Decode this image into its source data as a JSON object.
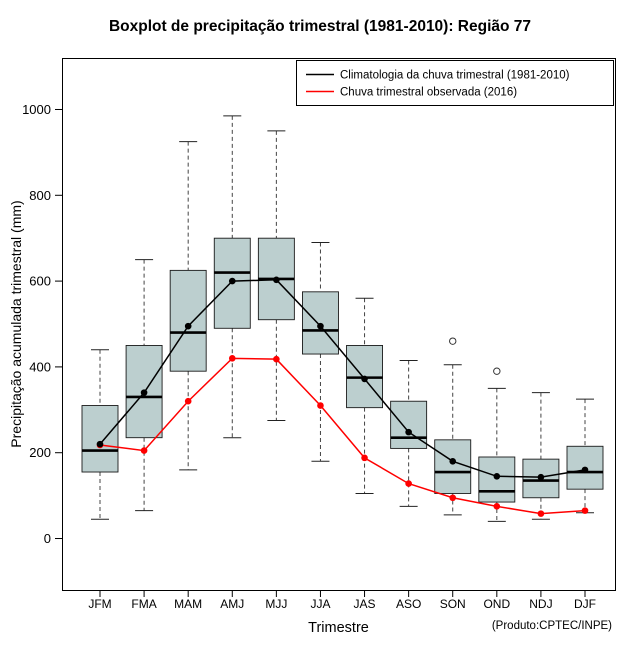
{
  "title": "Boxplot de precipitação trimestral (1981-2010): Região 77",
  "footer": {
    "note": "(Produto:CPTEC/INPE)"
  },
  "chart_data": {
    "type": "boxplot",
    "title": "Boxplot de precipitação trimestral (1981-2010): Região 77",
    "xlabel": "Trimestre",
    "ylabel": "Precipitação acumulada trimestral (mm)",
    "categories": [
      "JFM",
      "FMA",
      "MAM",
      "AMJ",
      "MJJ",
      "JJA",
      "JAS",
      "ASO",
      "SON",
      "OND",
      "NDJ",
      "DJF"
    ],
    "y_ticks": [
      0,
      200,
      400,
      600,
      800,
      1000
    ],
    "ylim": [
      -120,
      1120
    ],
    "grid": false,
    "legend_position": "top-right",
    "box_fill": "#bccfcf",
    "box_stroke": "#1a1a1a",
    "whisker_color": "#444444",
    "boxes": [
      {
        "category": "JFM",
        "low": 45,
        "q1": 155,
        "median": 205,
        "q3": 310,
        "high": 440,
        "outliers": []
      },
      {
        "category": "FMA",
        "low": 65,
        "q1": 235,
        "median": 330,
        "q3": 450,
        "high": 650,
        "outliers": []
      },
      {
        "category": "MAM",
        "low": 160,
        "q1": 390,
        "median": 480,
        "q3": 625,
        "high": 925,
        "outliers": []
      },
      {
        "category": "AMJ",
        "low": 235,
        "q1": 490,
        "median": 620,
        "q3": 700,
        "high": 985,
        "outliers": []
      },
      {
        "category": "MJJ",
        "low": 275,
        "q1": 510,
        "median": 605,
        "q3": 700,
        "high": 950,
        "outliers": []
      },
      {
        "category": "JJA",
        "low": 180,
        "q1": 430,
        "median": 485,
        "q3": 575,
        "high": 690,
        "outliers": []
      },
      {
        "category": "JAS",
        "low": 105,
        "q1": 305,
        "median": 375,
        "q3": 450,
        "high": 560,
        "outliers": []
      },
      {
        "category": "ASO",
        "low": 75,
        "q1": 210,
        "median": 235,
        "q3": 320,
        "high": 415,
        "outliers": []
      },
      {
        "category": "SON",
        "low": 55,
        "q1": 105,
        "median": 155,
        "q3": 230,
        "high": 405,
        "outliers": [
          460
        ]
      },
      {
        "category": "OND",
        "low": 40,
        "q1": 85,
        "median": 110,
        "q3": 190,
        "high": 350,
        "outliers": [
          390
        ]
      },
      {
        "category": "NDJ",
        "low": 45,
        "q1": 95,
        "median": 135,
        "q3": 185,
        "high": 340,
        "outliers": []
      },
      {
        "category": "DJF",
        "low": 60,
        "q1": 115,
        "median": 155,
        "q3": 215,
        "high": 325,
        "outliers": []
      }
    ],
    "series": [
      {
        "name": "Climatologia da chuva trimestral (1981-2010)",
        "color": "#000000",
        "marker": "filled-circle",
        "values": [
          220,
          340,
          495,
          600,
          603,
          495,
          372,
          248,
          180,
          145,
          143,
          160
        ]
      },
      {
        "name": "Chuva trimestral observada (2016)",
        "color": "#ff0000",
        "marker": "filled-circle",
        "values": [
          218,
          205,
          320,
          420,
          418,
          310,
          188,
          128,
          95,
          75,
          58,
          65
        ]
      }
    ]
  }
}
